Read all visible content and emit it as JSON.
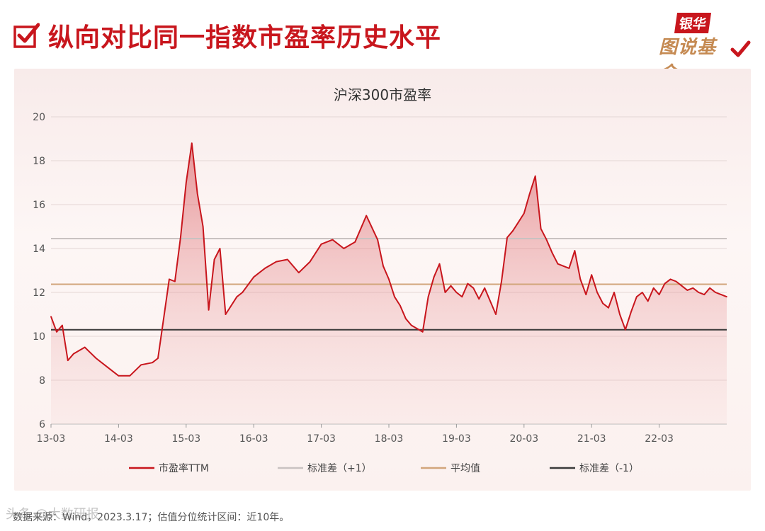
{
  "page": {
    "title": "纵向对比同一指数市盈率历史水平",
    "footer": "数据来源：Wind，2023.3.17；估值分位统计区间：近10年。",
    "watermark": "头条 @大数研报"
  },
  "logo": {
    "line1": "银华",
    "line2": "图说基金"
  },
  "colors": {
    "brand_red": "#c8161d",
    "gold": "#c58a52"
  },
  "chart_data": {
    "type": "line",
    "title": "沪深300市盈率",
    "xlabel": "",
    "ylabel": "",
    "ylim": [
      6,
      20
    ],
    "yticks": [
      6,
      8,
      10,
      12,
      14,
      16,
      18,
      20
    ],
    "xlim": [
      "2013-03",
      "2023-03"
    ],
    "xticks": [
      "13-03",
      "14-03",
      "15-03",
      "16-03",
      "17-03",
      "18-03",
      "19-03",
      "20-03",
      "21-03",
      "22-03"
    ],
    "grid": "horizontal",
    "legend_position": "bottom",
    "series": [
      {
        "name": "市盈率TTM",
        "color": "#c8161d",
        "area_fill": true,
        "x": [
          "2013-03",
          "2013-04",
          "2013-05",
          "2013-06",
          "2013-07",
          "2013-09",
          "2013-11",
          "2014-01",
          "2014-03",
          "2014-05",
          "2014-07",
          "2014-09",
          "2014-10",
          "2014-11",
          "2014-12",
          "2015-01",
          "2015-02",
          "2015-03",
          "2015-04",
          "2015-05",
          "2015-06",
          "2015-07",
          "2015-08",
          "2015-09",
          "2015-10",
          "2015-12",
          "2016-01",
          "2016-03",
          "2016-05",
          "2016-07",
          "2016-09",
          "2016-11",
          "2017-01",
          "2017-03",
          "2017-05",
          "2017-07",
          "2017-09",
          "2017-11",
          "2018-01",
          "2018-02",
          "2018-03",
          "2018-04",
          "2018-05",
          "2018-06",
          "2018-07",
          "2018-09",
          "2018-10",
          "2018-11",
          "2018-12",
          "2019-01",
          "2019-02",
          "2019-03",
          "2019-04",
          "2019-05",
          "2019-06",
          "2019-07",
          "2019-08",
          "2019-09",
          "2019-10",
          "2019-11",
          "2019-12",
          "2020-01",
          "2020-02",
          "2020-03",
          "2020-04",
          "2020-05",
          "2020-06",
          "2020-07",
          "2020-08",
          "2020-09",
          "2020-10",
          "2020-11",
          "2020-12",
          "2021-01",
          "2021-02",
          "2021-03",
          "2021-04",
          "2021-05",
          "2021-06",
          "2021-07",
          "2021-08",
          "2021-09",
          "2021-10",
          "2021-11",
          "2021-12",
          "2022-01",
          "2022-02",
          "2022-03",
          "2022-04",
          "2022-05",
          "2022-06",
          "2022-07",
          "2022-08",
          "2022-09",
          "2022-10",
          "2022-11",
          "2022-12",
          "2023-01",
          "2023-02",
          "2023-03"
        ],
        "values": [
          10.9,
          10.2,
          10.5,
          8.9,
          9.2,
          9.5,
          9.0,
          8.6,
          8.2,
          8.2,
          8.7,
          8.8,
          9.0,
          10.8,
          12.6,
          12.5,
          14.5,
          17.0,
          18.8,
          16.5,
          15.0,
          11.2,
          13.5,
          14.0,
          11.0,
          11.8,
          12.0,
          12.7,
          13.1,
          13.4,
          13.5,
          12.9,
          13.4,
          14.2,
          14.4,
          14.0,
          14.3,
          15.5,
          14.4,
          13.2,
          12.6,
          11.8,
          11.4,
          10.8,
          10.5,
          10.2,
          11.8,
          12.7,
          13.3,
          12.0,
          12.3,
          12.0,
          11.8,
          12.4,
          12.2,
          11.7,
          12.2,
          11.6,
          11.0,
          12.5,
          14.5,
          14.8,
          15.2,
          15.6,
          16.5,
          17.3,
          14.9,
          14.4,
          13.8,
          13.3,
          13.2,
          13.1,
          13.9,
          12.6,
          11.9,
          12.8,
          12.0,
          11.5,
          11.3,
          12.0,
          11.0,
          10.3,
          11.1,
          11.8,
          12.0,
          11.6,
          12.2,
          11.9,
          12.4,
          12.6,
          12.5,
          12.3,
          12.1,
          12.2,
          12.0,
          11.9,
          12.2,
          12.0,
          11.9,
          11.8
        ]
      },
      {
        "name": "标准差（+1）",
        "color": "#c9c2c1",
        "constant": 14.45
      },
      {
        "name": "平均值",
        "color": "#d2a57b",
        "constant": 12.37
      },
      {
        "name": "标准差（-1）",
        "color": "#3a3a3a",
        "constant": 10.3
      }
    ]
  }
}
